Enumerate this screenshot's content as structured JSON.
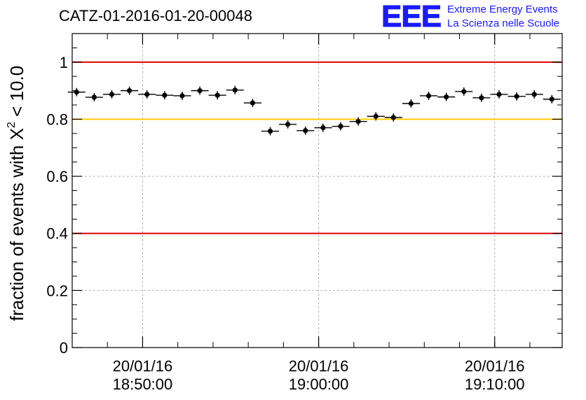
{
  "header": {
    "title": "CATZ-01-2016-01-20-00048"
  },
  "logo": {
    "mark": "EEE",
    "line1": "Extreme Energy Events",
    "line2": "La Scienza nelle Scuole"
  },
  "colors": {
    "threshold_red": "#e00000",
    "threshold_yellow": "#ffcc00",
    "marker": "#000000",
    "logo_blue": "#1a1aff"
  },
  "chart_data": {
    "type": "scatter",
    "ylabel_prefix": "fraction of events with X",
    "ylabel_sup": "2",
    "ylabel_suffix": " < 10.0",
    "ylim": [
      0,
      1.1
    ],
    "yticks": [
      0,
      0.2,
      0.4,
      0.6,
      0.8,
      1
    ],
    "ytick_labels": [
      "0",
      "0.2",
      "0.4",
      "0.6",
      "0.8",
      "1"
    ],
    "xlim": [
      "18:46:00",
      "19:13:50"
    ],
    "xticks": [
      {
        "time": "18:50:00",
        "date_label": "20/01/16",
        "time_label": "18:50:00"
      },
      {
        "time": "19:00:00",
        "date_label": "20/01/16",
        "time_label": "19:00:00"
      },
      {
        "time": "19:10:00",
        "date_label": "20/01/16",
        "time_label": "19:10:00"
      }
    ],
    "grid": "dashed",
    "threshold_lines": [
      {
        "y": 1.0,
        "color": "red"
      },
      {
        "y": 0.8,
        "color": "yellow"
      },
      {
        "y": 0.4,
        "color": "red"
      }
    ],
    "points": [
      {
        "x": "18:46:15",
        "y": 0.895
      },
      {
        "x": "18:47:15",
        "y": 0.877
      },
      {
        "x": "18:48:15",
        "y": 0.887
      },
      {
        "x": "18:49:15",
        "y": 0.9
      },
      {
        "x": "18:50:15",
        "y": 0.887
      },
      {
        "x": "18:51:15",
        "y": 0.884
      },
      {
        "x": "18:52:15",
        "y": 0.882
      },
      {
        "x": "18:53:15",
        "y": 0.9
      },
      {
        "x": "18:54:15",
        "y": 0.884
      },
      {
        "x": "18:55:15",
        "y": 0.902
      },
      {
        "x": "18:56:15",
        "y": 0.857
      },
      {
        "x": "18:57:15",
        "y": 0.758
      },
      {
        "x": "18:58:15",
        "y": 0.782
      },
      {
        "x": "18:59:15",
        "y": 0.76
      },
      {
        "x": "19:00:15",
        "y": 0.77
      },
      {
        "x": "19:01:15",
        "y": 0.775
      },
      {
        "x": "19:02:15",
        "y": 0.792
      },
      {
        "x": "19:03:15",
        "y": 0.81
      },
      {
        "x": "19:04:15",
        "y": 0.806
      },
      {
        "x": "19:05:15",
        "y": 0.855
      },
      {
        "x": "19:06:15",
        "y": 0.882
      },
      {
        "x": "19:07:15",
        "y": 0.878
      },
      {
        "x": "19:08:15",
        "y": 0.897
      },
      {
        "x": "19:09:15",
        "y": 0.875
      },
      {
        "x": "19:10:15",
        "y": 0.887
      },
      {
        "x": "19:11:15",
        "y": 0.88
      },
      {
        "x": "19:12:15",
        "y": 0.887
      },
      {
        "x": "19:13:15",
        "y": 0.87
      }
    ]
  }
}
